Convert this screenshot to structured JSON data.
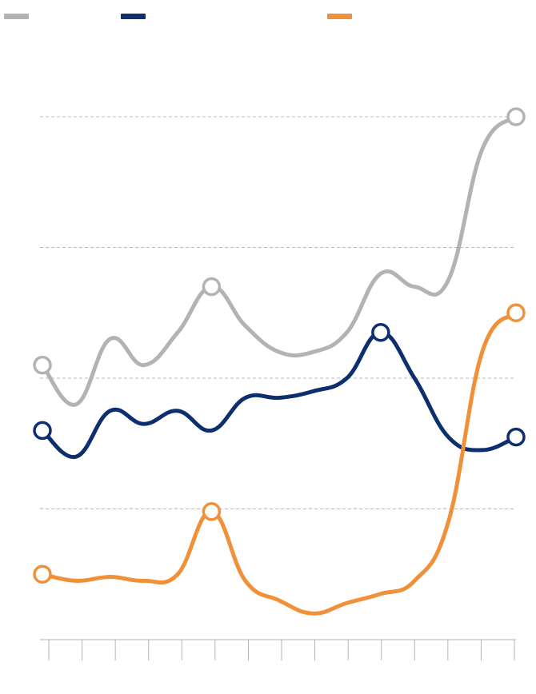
{
  "chart_data": {
    "type": "line",
    "title": "",
    "xlabel": "",
    "ylabel": "",
    "x_count": 15,
    "ylim": [
      0,
      4.1
    ],
    "gridlines": [
      1,
      2,
      3,
      4
    ],
    "legend": {
      "placement": "top-left",
      "labels_visible": false
    },
    "series": [
      {
        "color": "#b3b3b3",
        "values": [
          2.1,
          1.8,
          2.3,
          2.1,
          2.35,
          2.7,
          2.4,
          2.2,
          2.2,
          2.35,
          2.8,
          2.7,
          2.75,
          3.75,
          4.0
        ],
        "markers": [
          0,
          5,
          14
        ]
      },
      {
        "color": "#0d2f6e",
        "values": [
          1.6,
          1.4,
          1.75,
          1.65,
          1.75,
          1.6,
          1.85,
          1.85,
          1.9,
          2.0,
          2.35,
          2.0,
          1.55,
          1.45,
          1.55
        ],
        "markers": [
          0,
          10,
          14
        ]
      },
      {
        "color": "#f0913a",
        "values": [
          0.5,
          0.45,
          0.48,
          0.45,
          0.5,
          0.98,
          0.45,
          0.3,
          0.2,
          0.28,
          0.35,
          0.45,
          0.9,
          2.2,
          2.5
        ],
        "markers": [
          0,
          5,
          14
        ]
      }
    ]
  }
}
